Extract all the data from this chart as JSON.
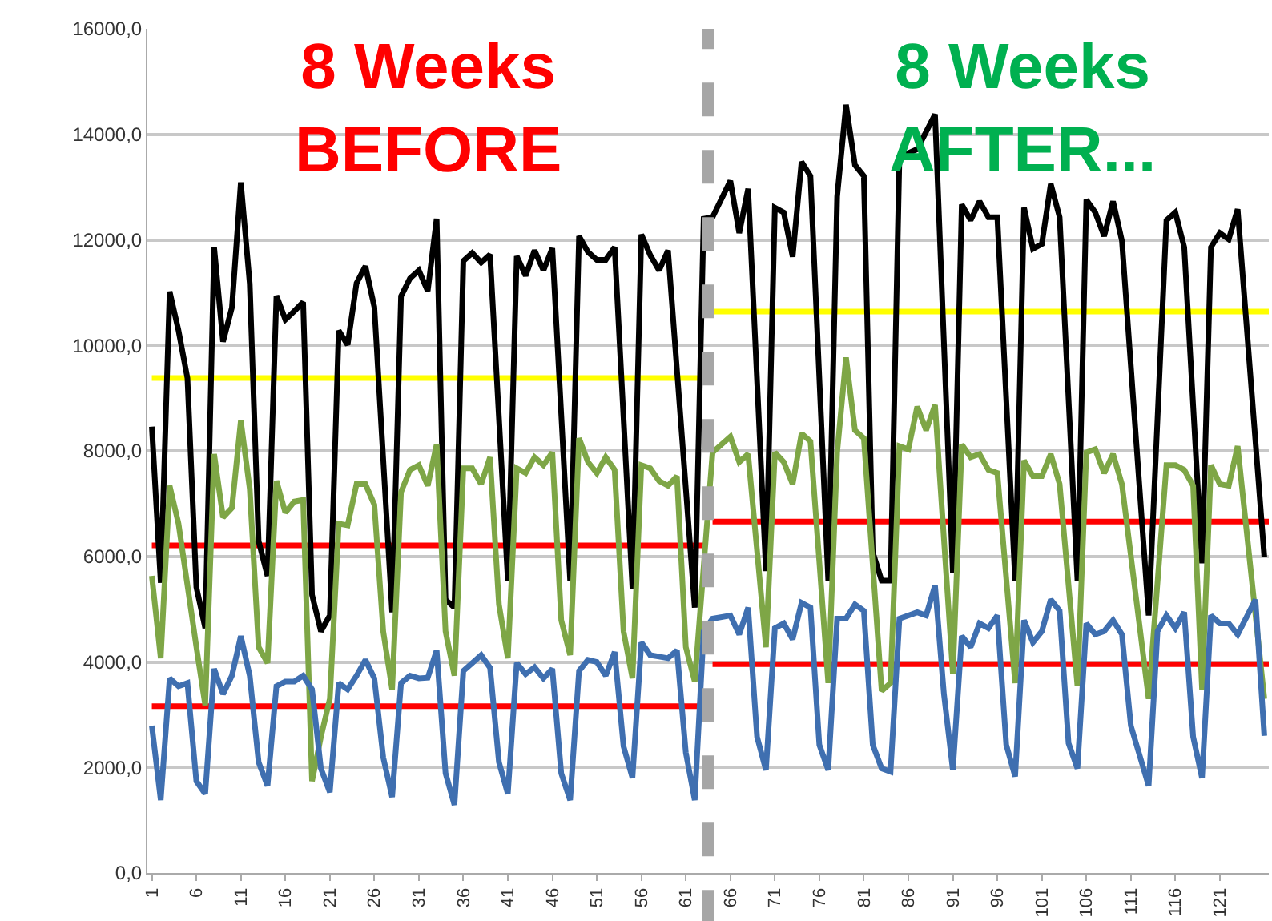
{
  "chart_data": {
    "type": "line",
    "annotations": [
      "8 Weeks\nBEFORE",
      "8 Weeks\nAFTER..."
    ],
    "xlim": [
      0.5,
      126.5
    ],
    "xticks": [
      1,
      6,
      11,
      16,
      21,
      26,
      31,
      36,
      41,
      46,
      51,
      56,
      61,
      66,
      71,
      76,
      81,
      86,
      91,
      96,
      101,
      106,
      111,
      116,
      121
    ],
    "ylim": [
      0,
      16000
    ],
    "yticks": [
      {
        "value": 0,
        "label": "0,0"
      },
      {
        "value": 2000,
        "label": "2000,0"
      },
      {
        "value": 4000,
        "label": "4000,0"
      },
      {
        "value": 6000,
        "label": "6000,0"
      },
      {
        "value": 8000,
        "label": "8000,0"
      },
      {
        "value": 10000,
        "label": "10000,0"
      },
      {
        "value": 12000,
        "label": "12000,0"
      },
      {
        "value": 14000,
        "label": "14000,0"
      },
      {
        "value": 16000,
        "label": "16000,0"
      }
    ],
    "grid": "y",
    "marker": "none",
    "line_style": "solid",
    "ref_lines": [
      {
        "axis": "x",
        "value": 63.5,
        "color": "#a6a6a6",
        "line_style": "dashed"
      }
    ],
    "series": [
      {
        "color": "#ffff00",
        "x": [
          1,
          63
        ],
        "values": [
          9380,
          9380
        ]
      },
      {
        "color": "#ffff00",
        "x": [
          64,
          126.5
        ],
        "values": [
          10640,
          10640
        ]
      },
      {
        "color": "#ff0000",
        "x": [
          1,
          63
        ],
        "values": [
          6210,
          6210
        ]
      },
      {
        "color": "#ff0000",
        "x": [
          1,
          63
        ],
        "values": [
          3160,
          3160
        ]
      },
      {
        "color": "#ff0000",
        "x": [
          64,
          126.5
        ],
        "values": [
          6660,
          6660
        ]
      },
      {
        "color": "#ff0000",
        "x": [
          64,
          126.5
        ],
        "values": [
          3960,
          3960
        ]
      },
      {
        "color": "#000000",
        "x": [
          1,
          2,
          3,
          4,
          5,
          6,
          7,
          8,
          9,
          10,
          11,
          12,
          13,
          14,
          15,
          16,
          17,
          18,
          19,
          20,
          21,
          22,
          23,
          24,
          25,
          26,
          28,
          29,
          30,
          31,
          32,
          33,
          34,
          35,
          36,
          37,
          38,
          39,
          41,
          42,
          43,
          44,
          45,
          46,
          48,
          49,
          50,
          51,
          52,
          53,
          55,
          56,
          57,
          58,
          59,
          62,
          63,
          64,
          66,
          67,
          68,
          70,
          71,
          72,
          73,
          74,
          75,
          77,
          78,
          79,
          80,
          81,
          82,
          83,
          84,
          85,
          87,
          89,
          91,
          92,
          93,
          94,
          95,
          96,
          98,
          99,
          100,
          101,
          102,
          103,
          105,
          106,
          107,
          108,
          109,
          110,
          113,
          115,
          116,
          117,
          119,
          120,
          121,
          122,
          123,
          126
        ],
        "values": [
          8460,
          5500,
          11020,
          10280,
          9380,
          5420,
          4640,
          11860,
          10070,
          10720,
          13090,
          11170,
          6290,
          5630,
          10940,
          10490,
          10650,
          10820,
          5270,
          4580,
          4880,
          10280,
          10010,
          11180,
          11500,
          10730,
          4940,
          10930,
          11270,
          11420,
          11030,
          12400,
          5180,
          5030,
          11600,
          11750,
          11570,
          11720,
          5540,
          11690,
          11320,
          11800,
          11420,
          11840,
          5540,
          12070,
          11770,
          11620,
          11620,
          11860,
          5390,
          12100,
          11710,
          11420,
          11800,
          5030,
          12400,
          12430,
          13120,
          12130,
          12970,
          5720,
          12610,
          12520,
          11680,
          13480,
          13210,
          5540,
          12820,
          14560,
          13420,
          13210,
          6080,
          5540,
          5540,
          13570,
          13720,
          14380,
          5690,
          12670,
          12370,
          12730,
          12430,
          12430,
          5540,
          12610,
          11830,
          11920,
          13060,
          12430,
          5540,
          12760,
          12520,
          12070,
          12730,
          11980,
          4880,
          12370,
          12520,
          11860,
          5870,
          11860,
          12130,
          12010,
          12580,
          5990
        ]
      },
      {
        "color": "#7ea646",
        "x": [
          1,
          2,
          3,
          4,
          6,
          7,
          8,
          9,
          10,
          11,
          12,
          13,
          14,
          15,
          16,
          17,
          18,
          19,
          20,
          21,
          22,
          23,
          24,
          25,
          26,
          27,
          28,
          29,
          30,
          31,
          32,
          33,
          34,
          35,
          36,
          37,
          38,
          39,
          40,
          41,
          42,
          43,
          44,
          45,
          46,
          47,
          48,
          49,
          50,
          51,
          52,
          53,
          54,
          55,
          56,
          57,
          58,
          59,
          60,
          61,
          62,
          64,
          66,
          67,
          68,
          70,
          71,
          72,
          73,
          74,
          75,
          77,
          78,
          79,
          80,
          81,
          83,
          84,
          85,
          86,
          87,
          88,
          89,
          91,
          92,
          93,
          94,
          95,
          96,
          98,
          99,
          100,
          101,
          102,
          103,
          105,
          106,
          107,
          108,
          109,
          110,
          113,
          115,
          116,
          117,
          118,
          119,
          120,
          121,
          122,
          123,
          126
        ],
        "values": [
          5630,
          4070,
          7340,
          6620,
          4290,
          3180,
          7940,
          6740,
          6920,
          8570,
          7280,
          4280,
          3980,
          7430,
          6830,
          7040,
          7070,
          1740,
          2580,
          3300,
          6620,
          6590,
          7370,
          7370,
          6980,
          4580,
          3480,
          7220,
          7640,
          7730,
          7340,
          8120,
          4580,
          3740,
          7670,
          7670,
          7370,
          7880,
          5090,
          4070,
          7670,
          7580,
          7880,
          7730,
          7970,
          4790,
          4130,
          8240,
          7790,
          7580,
          7880,
          7640,
          4580,
          3690,
          7730,
          7670,
          7430,
          7340,
          7520,
          4280,
          3630,
          7970,
          8270,
          7790,
          7940,
          4280,
          7970,
          7790,
          7370,
          8330,
          8180,
          3600,
          7970,
          9770,
          8390,
          8240,
          3450,
          3600,
          8090,
          8030,
          8840,
          8390,
          8870,
          3780,
          8120,
          7880,
          7940,
          7640,
          7580,
          3600,
          7820,
          7520,
          7520,
          7940,
          7370,
          3540,
          7970,
          8030,
          7580,
          7940,
          7370,
          3300,
          7730,
          7730,
          7640,
          7340,
          3480,
          7730,
          7370,
          7340,
          8090,
          3300
        ]
      },
      {
        "color": "#3f6fb0",
        "x": [
          1,
          2,
          3,
          4,
          5,
          6,
          7,
          8,
          9,
          10,
          11,
          12,
          13,
          14,
          15,
          16,
          17,
          18,
          19,
          20,
          21,
          22,
          23,
          24,
          25,
          26,
          27,
          28,
          29,
          30,
          31,
          32,
          33,
          34,
          35,
          36,
          37,
          38,
          39,
          40,
          41,
          42,
          43,
          44,
          45,
          46,
          47,
          48,
          49,
          50,
          51,
          52,
          53,
          54,
          55,
          56,
          57,
          58,
          59,
          60,
          61,
          62,
          63,
          64,
          66,
          67,
          68,
          69,
          70,
          71,
          72,
          73,
          74,
          75,
          76,
          77,
          78,
          79,
          80,
          81,
          82,
          83,
          84,
          85,
          87,
          88,
          89,
          90,
          91,
          92,
          93,
          94,
          95,
          96,
          97,
          98,
          99,
          100,
          101,
          102,
          103,
          104,
          105,
          106,
          107,
          108,
          109,
          110,
          111,
          113,
          114,
          115,
          116,
          117,
          118,
          119,
          120,
          121,
          122,
          123,
          125,
          126
        ],
        "values": [
          2790,
          1380,
          3690,
          3540,
          3600,
          1740,
          1500,
          3870,
          3390,
          3740,
          4490,
          3740,
          2100,
          1650,
          3540,
          3630,
          3630,
          3740,
          3480,
          1980,
          1530,
          3600,
          3480,
          3740,
          4040,
          3690,
          2190,
          1440,
          3600,
          3740,
          3690,
          3700,
          4220,
          1890,
          1290,
          3830,
          3980,
          4130,
          3890,
          2100,
          1500,
          3980,
          3770,
          3900,
          3690,
          3870,
          1890,
          1380,
          3830,
          4040,
          4000,
          3740,
          4190,
          2400,
          1800,
          4370,
          4130,
          4100,
          4070,
          4220,
          2280,
          1380,
          4580,
          4820,
          4880,
          4520,
          5030,
          2580,
          1950,
          4640,
          4730,
          4430,
          5120,
          5030,
          2430,
          1950,
          4820,
          4820,
          5090,
          4970,
          2430,
          1980,
          1920,
          4820,
          4940,
          4880,
          5450,
          3390,
          1950,
          4490,
          4280,
          4730,
          4640,
          4880,
          2430,
          1830,
          4790,
          4370,
          4580,
          5180,
          4970,
          2460,
          1980,
          4730,
          4520,
          4580,
          4790,
          4520,
          2790,
          1650,
          4580,
          4880,
          4640,
          4940,
          2580,
          1800,
          4880,
          4730,
          4730,
          4520,
          5180,
          2600
        ]
      }
    ]
  }
}
